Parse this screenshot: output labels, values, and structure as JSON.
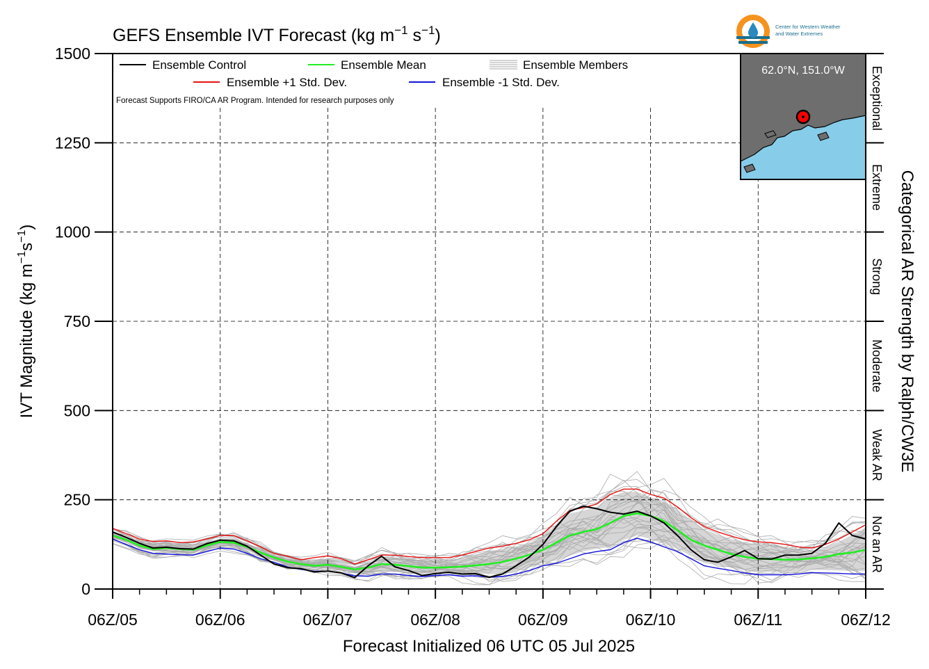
{
  "chart_data": {
    "type": "line",
    "title": "GEFS Ensemble IVT Forecast (kg m",
    "title_sup1": "−1",
    "title_mid": " s",
    "title_sup2": "−1",
    "title_end": ")",
    "ylabel": "IVT Magnitude (kg m",
    "ylabel_sup1": "−1",
    "ylabel_mid": "s",
    "ylabel_sup2": "−1",
    "ylabel_end": ")",
    "xlabel": "Forecast Initialized 06 UTC 05 Jul 2025",
    "right_label": "Categorical AR Strength by Ralph/CW3E",
    "ylim": [
      0,
      1500
    ],
    "xlim": [
      0,
      168
    ],
    "y_ticks": [
      "0",
      "250",
      "500",
      "750",
      "1000",
      "1250",
      "1500"
    ],
    "y_tick_values": [
      0,
      250,
      500,
      750,
      1000,
      1250,
      1500
    ],
    "x_ticks": [
      "06Z/05",
      "06Z/06",
      "06Z/07",
      "06Z/08",
      "06Z/09",
      "06Z/10",
      "06Z/11",
      "06Z/12"
    ],
    "x_tick_values": [
      0,
      24,
      48,
      72,
      96,
      120,
      144,
      168
    ],
    "grid": true,
    "categories": [
      {
        "label": "Not an AR",
        "range": [
          0,
          250
        ]
      },
      {
        "label": "Weak AR",
        "range": [
          250,
          500
        ]
      },
      {
        "label": "Moderate",
        "range": [
          500,
          750
        ]
      },
      {
        "label": "Strong",
        "range": [
          750,
          1000
        ]
      },
      {
        "label": "Extreme",
        "range": [
          1000,
          1250
        ]
      },
      {
        "label": "Exceptional",
        "range": [
          1250,
          1500
        ]
      }
    ],
    "legend": {
      "control": "Ensemble Control",
      "mean": "Ensemble Mean",
      "members": "Ensemble Members",
      "plus_std": "Ensemble +1 Std. Dev.",
      "minus_std": "Ensemble -1 Std. Dev."
    },
    "note": "Forecast Supports FIRO/CA AR Program. Intended for research purposes only",
    "inset_label": "62.0°N, 151.0°W",
    "logo_text": [
      "Center for Western Weather",
      "and Water Extremes"
    ],
    "colors": {
      "control": "#000000",
      "mean": "#22ee22",
      "plus_std": "#e81010",
      "minus_std": "#1010dd",
      "members": "#aaaaaa",
      "envelope": "#d6d6d6",
      "inset_land": "#6e6e6e",
      "inset_water": "#87cce8",
      "inset_marker": "#ff0000"
    },
    "x": [
      0,
      3,
      6,
      9,
      12,
      15,
      18,
      21,
      24,
      27,
      30,
      33,
      36,
      39,
      42,
      45,
      48,
      51,
      54,
      57,
      60,
      63,
      66,
      69,
      72,
      75,
      78,
      81,
      84,
      87,
      90,
      93,
      96,
      99,
      102,
      105,
      108,
      111,
      114,
      117,
      120,
      123,
      126,
      129,
      132,
      135,
      138,
      141,
      144,
      147,
      150,
      153,
      156,
      159,
      162,
      165,
      168
    ],
    "series": [
      {
        "name": "Ensemble Control",
        "values": [
          160,
          145,
          128,
          115,
          117,
          113,
          112,
          127,
          137,
          135,
          120,
          95,
          70,
          60,
          57,
          48,
          50,
          45,
          32,
          65,
          92,
          62,
          52,
          38,
          43,
          47,
          42,
          43,
          33,
          42,
          65,
          90,
          125,
          175,
          218,
          232,
          225,
          215,
          210,
          218,
          205,
          185,
          150,
          110,
          82,
          75,
          90,
          108,
          85,
          84,
          95,
          95,
          100,
          128,
          185,
          150,
          140
        ]
      },
      {
        "name": "Ensemble Mean",
        "values": [
          150,
          138,
          122,
          112,
          115,
          112,
          110,
          122,
          132,
          130,
          118,
          102,
          88,
          77,
          70,
          65,
          68,
          62,
          55,
          60,
          70,
          68,
          64,
          60,
          60,
          61,
          63,
          66,
          70,
          76,
          85,
          96,
          110,
          130,
          150,
          160,
          168,
          185,
          205,
          212,
          205,
          190,
          165,
          138,
          122,
          110,
          98,
          90,
          85,
          84,
          82,
          83,
          86,
          90,
          98,
          102,
          110
        ]
      },
      {
        "name": "Ensemble +1 Std. Dev.",
        "values": [
          170,
          155,
          140,
          133,
          135,
          130,
          132,
          140,
          150,
          150,
          135,
          118,
          100,
          92,
          82,
          88,
          93,
          85,
          70,
          82,
          95,
          95,
          91,
          88,
          88,
          88,
          95,
          105,
          115,
          120,
          128,
          138,
          155,
          190,
          220,
          228,
          238,
          265,
          280,
          280,
          265,
          255,
          230,
          200,
          175,
          160,
          148,
          138,
          132,
          130,
          125,
          118,
          115,
          125,
          140,
          160,
          180
        ]
      },
      {
        "name": "Ensemble -1 Std. Dev.",
        "values": [
          140,
          125,
          110,
          100,
          98,
          96,
          95,
          105,
          115,
          112,
          100,
          85,
          75,
          62,
          55,
          50,
          50,
          45,
          37,
          36,
          42,
          42,
          38,
          35,
          38,
          40,
          36,
          37,
          33,
          35,
          42,
          52,
          65,
          72,
          85,
          98,
          105,
          110,
          130,
          142,
          132,
          118,
          105,
          85,
          65,
          58,
          52,
          45,
          40,
          40,
          40,
          42,
          46,
          45,
          44,
          42,
          42
        ]
      }
    ]
  }
}
